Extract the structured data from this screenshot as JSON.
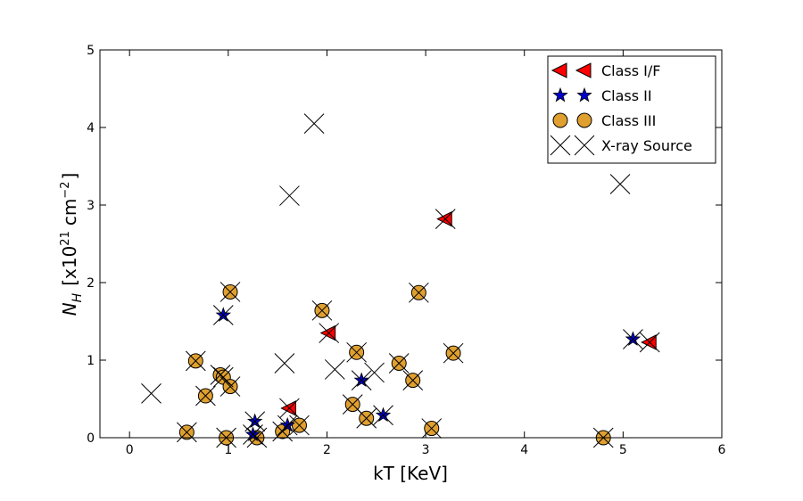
{
  "chart_data": {
    "type": "scatter",
    "xlabel": "kT [KeV]",
    "ylabel": "N_H [x10^21 cm^-2]",
    "ylabel_parts": {
      "symbol": "N",
      "subscript": "H",
      "bracket_open": "[x10",
      "exp1": "21",
      "unit": "cm",
      "exp2": "−2",
      "bracket_close": "]"
    },
    "xlim": [
      -0.3,
      6
    ],
    "ylim": [
      0,
      5
    ],
    "xticks": [
      0,
      1,
      2,
      3,
      4,
      5,
      6
    ],
    "yticks": [
      0,
      1,
      2,
      3,
      4,
      5
    ],
    "grid": false,
    "legend_position": "top-right",
    "series": [
      {
        "name": "Class I/F",
        "marker": "triangle-left",
        "color": "#ff0000",
        "points": [
          [
            3.2,
            2.82
          ],
          [
            2.02,
            1.35
          ],
          [
            1.62,
            0.38
          ],
          [
            5.27,
            1.23
          ]
        ]
      },
      {
        "name": "Class II",
        "marker": "star",
        "color": "#0000cc",
        "points": [
          [
            0.95,
            1.58
          ],
          [
            2.35,
            0.74
          ],
          [
            1.27,
            0.21
          ],
          [
            2.57,
            0.29
          ],
          [
            1.6,
            0.16
          ],
          [
            1.25,
            0.04
          ],
          [
            5.1,
            1.27
          ]
        ]
      },
      {
        "name": "Class III",
        "marker": "circle",
        "color": "#e0a030",
        "points": [
          [
            1.02,
            1.88
          ],
          [
            2.93,
            1.87
          ],
          [
            1.95,
            1.64
          ],
          [
            0.67,
            0.99
          ],
          [
            2.3,
            1.1
          ],
          [
            3.28,
            1.09
          ],
          [
            2.73,
            0.96
          ],
          [
            0.92,
            0.81
          ],
          [
            0.95,
            0.78
          ],
          [
            1.02,
            0.66
          ],
          [
            0.77,
            0.54
          ],
          [
            2.87,
            0.74
          ],
          [
            2.26,
            0.43
          ],
          [
            2.4,
            0.25
          ],
          [
            1.72,
            0.16
          ],
          [
            3.06,
            0.12
          ],
          [
            0.58,
            0.07
          ],
          [
            1.55,
            0.08
          ],
          [
            0.98,
            0.0
          ],
          [
            1.29,
            0.0
          ],
          [
            4.8,
            0.0
          ]
        ]
      },
      {
        "name": "X-ray Source",
        "marker": "x",
        "color": "#000000",
        "points": [
          [
            0.22,
            0.57
          ],
          [
            1.87,
            4.05
          ],
          [
            1.62,
            3.12
          ],
          [
            4.97,
            3.27
          ],
          [
            1.57,
            0.96
          ],
          [
            2.08,
            0.88
          ],
          [
            2.48,
            0.84
          ],
          [
            3.2,
            2.82
          ],
          [
            2.02,
            1.35
          ],
          [
            1.62,
            0.38
          ],
          [
            5.27,
            1.23
          ],
          [
            0.95,
            1.58
          ],
          [
            2.35,
            0.74
          ],
          [
            1.27,
            0.21
          ],
          [
            2.57,
            0.29
          ],
          [
            1.6,
            0.16
          ],
          [
            1.25,
            0.04
          ],
          [
            5.1,
            1.27
          ],
          [
            1.02,
            1.88
          ],
          [
            2.93,
            1.87
          ],
          [
            1.95,
            1.64
          ],
          [
            0.67,
            0.99
          ],
          [
            2.3,
            1.1
          ],
          [
            3.28,
            1.09
          ],
          [
            2.73,
            0.96
          ],
          [
            0.92,
            0.81
          ],
          [
            0.95,
            0.78
          ],
          [
            1.02,
            0.66
          ],
          [
            0.77,
            0.54
          ],
          [
            2.87,
            0.74
          ],
          [
            2.26,
            0.43
          ],
          [
            2.4,
            0.25
          ],
          [
            1.72,
            0.16
          ],
          [
            3.06,
            0.12
          ],
          [
            0.58,
            0.07
          ],
          [
            1.55,
            0.08
          ],
          [
            0.98,
            0.0
          ],
          [
            1.29,
            0.0
          ],
          [
            4.8,
            0.0
          ]
        ]
      }
    ]
  }
}
